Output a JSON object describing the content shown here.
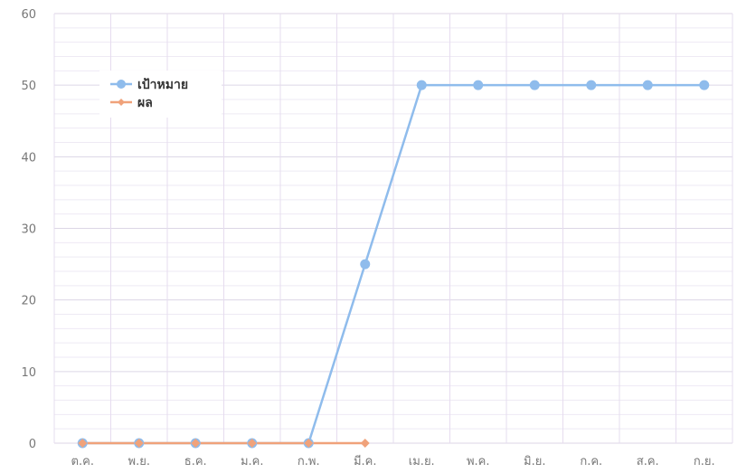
{
  "chart_data": {
    "type": "line",
    "categories": [
      "ต.ค.",
      "พ.ย.",
      "ธ.ค.",
      "ม.ค.",
      "ก.พ.",
      "มี.ค.",
      "เม.ย.",
      "พ.ค.",
      "มิ.ย.",
      "ก.ค.",
      "ส.ค.",
      "ก.ย."
    ],
    "series": [
      {
        "name": "เป้าหมาย",
        "color": "#8fbcec",
        "values": [
          0,
          0,
          0,
          0,
          0,
          25,
          50,
          50,
          50,
          50,
          50,
          50
        ]
      },
      {
        "name": "ผล",
        "color": "#f0a27a",
        "values": [
          0,
          0,
          0,
          0,
          0,
          0,
          null,
          null,
          null,
          null,
          null,
          null
        ]
      }
    ],
    "yticks": [
      0,
      10,
      20,
      30,
      40,
      50,
      60
    ],
    "ylim": [
      0,
      60
    ],
    "grid": true,
    "legend": "top-left"
  }
}
